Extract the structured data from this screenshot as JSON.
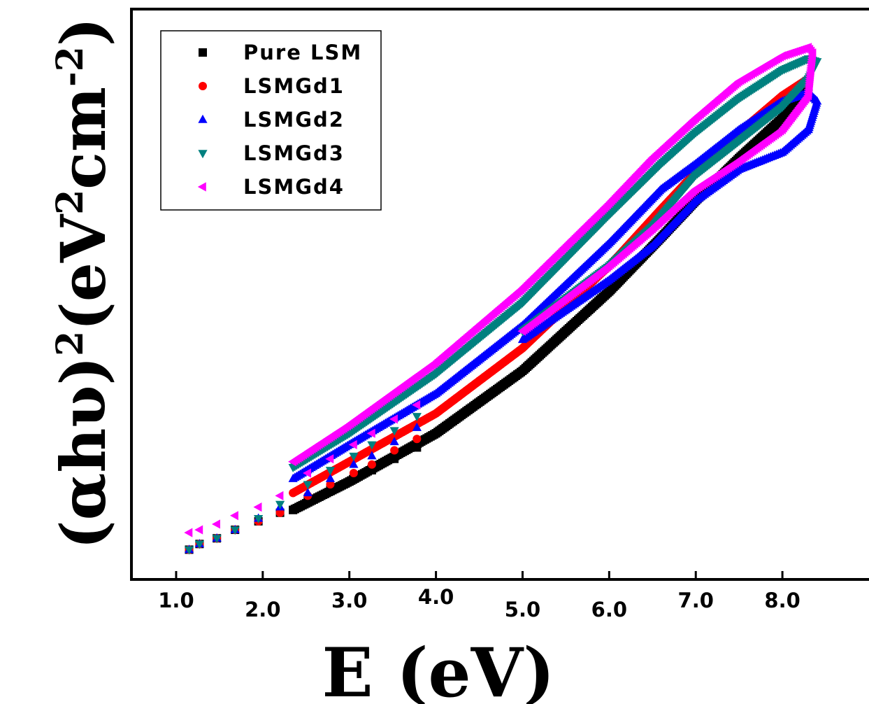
{
  "chart_data": {
    "type": "scatter",
    "xlabel": "E (eV)",
    "ylabel_parts": {
      "base": "(αhυ)",
      "exp1": "2",
      "mid1": "(eV",
      "exp2": "2",
      "mid2": "cm",
      "exp3": "-2",
      "close": ")"
    },
    "xlim": [
      0.5,
      9.0
    ],
    "x_ticks": [
      {
        "value": 1.0,
        "label": "1.0"
      },
      {
        "value": 2.0,
        "label": "2.0"
      },
      {
        "value": 3.0,
        "label": "3.0"
      },
      {
        "value": 4.0,
        "label": "4.0"
      },
      {
        "value": 5.0,
        "label": "5.0"
      },
      {
        "value": 6.0,
        "label": "6.0"
      },
      {
        "value": 7.0,
        "label": "7.0"
      },
      {
        "value": 8.0,
        "label": "8.0"
      }
    ],
    "y_tick_labels": "none",
    "grid": false,
    "legend_position": "top-left",
    "series": [
      {
        "name": "Pure LSM",
        "color": "#000000",
        "marker": "square",
        "sparse": [
          [
            1.15,
            0.1
          ],
          [
            1.27,
            0.12
          ],
          [
            1.47,
            0.14
          ],
          [
            1.68,
            0.17
          ],
          [
            1.95,
            0.2
          ],
          [
            2.2,
            0.23
          ],
          [
            2.52,
            0.27
          ],
          [
            2.78,
            0.31
          ],
          [
            3.05,
            0.35
          ],
          [
            3.26,
            0.38
          ],
          [
            3.52,
            0.42
          ],
          [
            3.78,
            0.46
          ]
        ],
        "upper": [
          [
            2.35,
            0.24
          ],
          [
            3.0,
            0.34
          ],
          [
            4.0,
            0.51
          ],
          [
            5.0,
            0.73
          ],
          [
            6.0,
            1.01
          ],
          [
            6.6,
            1.2
          ],
          [
            7.0,
            1.33
          ],
          [
            7.5,
            1.48
          ],
          [
            8.0,
            1.62
          ],
          [
            8.3,
            1.73
          ]
        ],
        "lower": [
          [
            2.35,
            0.24
          ],
          [
            3.0,
            0.34
          ],
          [
            4.0,
            0.51
          ],
          [
            5.0,
            0.73
          ],
          [
            6.0,
            1.01
          ],
          [
            6.6,
            1.2
          ],
          [
            7.0,
            1.33
          ],
          [
            7.5,
            1.48
          ],
          [
            8.0,
            1.62
          ],
          [
            8.3,
            1.73
          ]
        ]
      },
      {
        "name": "LSMGd1",
        "color": "#ff0000",
        "marker": "circle",
        "sparse": [
          [
            1.15,
            0.1
          ],
          [
            1.27,
            0.12
          ],
          [
            1.47,
            0.14
          ],
          [
            1.68,
            0.17
          ],
          [
            1.95,
            0.2
          ],
          [
            2.2,
            0.23
          ],
          [
            2.52,
            0.29
          ],
          [
            2.78,
            0.33
          ],
          [
            3.05,
            0.37
          ],
          [
            3.26,
            0.4
          ],
          [
            3.52,
            0.45
          ],
          [
            3.78,
            0.49
          ]
        ],
        "upper": [
          [
            2.35,
            0.3
          ],
          [
            3.0,
            0.41
          ],
          [
            4.0,
            0.58
          ],
          [
            5.0,
            0.81
          ],
          [
            6.0,
            1.1
          ],
          [
            6.6,
            1.3
          ],
          [
            7.0,
            1.43
          ],
          [
            7.5,
            1.57
          ],
          [
            8.0,
            1.7
          ],
          [
            8.3,
            1.76
          ]
        ],
        "lower": [
          [
            2.35,
            0.3
          ],
          [
            3.0,
            0.41
          ],
          [
            4.0,
            0.58
          ],
          [
            5.0,
            0.81
          ],
          [
            6.0,
            1.1
          ],
          [
            6.6,
            1.3
          ],
          [
            7.0,
            1.43
          ],
          [
            7.5,
            1.57
          ],
          [
            8.0,
            1.7
          ],
          [
            8.3,
            1.76
          ]
        ]
      },
      {
        "name": "LSMGd2",
        "color": "#0000ff",
        "marker": "triangle-up",
        "sparse": [
          [
            1.15,
            0.1
          ],
          [
            1.27,
            0.12
          ],
          [
            1.47,
            0.14
          ],
          [
            1.68,
            0.17
          ],
          [
            1.95,
            0.21
          ],
          [
            2.2,
            0.25
          ],
          [
            2.52,
            0.3
          ],
          [
            2.78,
            0.35
          ],
          [
            3.05,
            0.4
          ],
          [
            3.26,
            0.43
          ],
          [
            3.52,
            0.48
          ],
          [
            3.78,
            0.53
          ]
        ],
        "upper": [
          [
            2.35,
            0.35
          ],
          [
            3.0,
            0.47
          ],
          [
            4.0,
            0.65
          ],
          [
            5.0,
            0.89
          ],
          [
            6.0,
            1.18
          ],
          [
            6.6,
            1.37
          ],
          [
            7.0,
            1.46
          ],
          [
            7.5,
            1.58
          ],
          [
            8.0,
            1.68
          ],
          [
            8.3,
            1.71
          ],
          [
            8.4,
            1.68
          ]
        ],
        "lower": [
          [
            8.4,
            1.68
          ],
          [
            8.3,
            1.58
          ],
          [
            8.0,
            1.5
          ],
          [
            7.5,
            1.44
          ],
          [
            7.0,
            1.33
          ],
          [
            6.5,
            1.17
          ],
          [
            6.0,
            1.05
          ],
          [
            5.0,
            0.84
          ]
        ]
      },
      {
        "name": "LSMGd3",
        "color": "#00807f",
        "marker": "triangle-down",
        "sparse": [
          [
            1.15,
            0.1
          ],
          [
            1.27,
            0.12
          ],
          [
            1.47,
            0.14
          ],
          [
            1.68,
            0.17
          ],
          [
            1.95,
            0.21
          ],
          [
            2.2,
            0.26
          ],
          [
            2.52,
            0.33
          ],
          [
            2.78,
            0.38
          ],
          [
            3.05,
            0.43
          ],
          [
            3.26,
            0.47
          ],
          [
            3.52,
            0.52
          ],
          [
            3.78,
            0.57
          ]
        ],
        "upper": [
          [
            2.35,
            0.39
          ],
          [
            3.0,
            0.51
          ],
          [
            4.0,
            0.72
          ],
          [
            5.0,
            0.97
          ],
          [
            6.0,
            1.28
          ],
          [
            6.6,
            1.46
          ],
          [
            7.0,
            1.57
          ],
          [
            7.5,
            1.69
          ],
          [
            8.0,
            1.79
          ],
          [
            8.3,
            1.83
          ],
          [
            8.4,
            1.82
          ]
        ],
        "lower": [
          [
            8.4,
            1.82
          ],
          [
            8.3,
            1.76
          ],
          [
            8.0,
            1.66
          ],
          [
            7.5,
            1.54
          ],
          [
            7.0,
            1.42
          ],
          [
            6.5,
            1.24
          ],
          [
            6.0,
            1.1
          ],
          [
            5.0,
            0.87
          ]
        ]
      },
      {
        "name": "LSMGd4",
        "color": "#ff00ff",
        "marker": "triangle-left",
        "sparse": [
          [
            1.15,
            0.16
          ],
          [
            1.27,
            0.17
          ],
          [
            1.47,
            0.19
          ],
          [
            1.68,
            0.22
          ],
          [
            1.95,
            0.25
          ],
          [
            2.2,
            0.29
          ],
          [
            2.52,
            0.37
          ],
          [
            2.78,
            0.42
          ],
          [
            3.05,
            0.47
          ],
          [
            3.26,
            0.51
          ],
          [
            3.52,
            0.56
          ],
          [
            3.78,
            0.61
          ]
        ],
        "upper": [
          [
            2.35,
            0.41
          ],
          [
            3.0,
            0.54
          ],
          [
            4.0,
            0.76
          ],
          [
            5.0,
            1.02
          ],
          [
            6.0,
            1.32
          ],
          [
            6.5,
            1.48
          ],
          [
            7.0,
            1.62
          ],
          [
            7.5,
            1.75
          ],
          [
            8.0,
            1.84
          ],
          [
            8.3,
            1.87
          ],
          [
            8.35,
            1.85
          ]
        ],
        "lower": [
          [
            8.35,
            1.85
          ],
          [
            8.3,
            1.7
          ],
          [
            8.0,
            1.58
          ],
          [
            7.5,
            1.47
          ],
          [
            7.0,
            1.37
          ],
          [
            6.5,
            1.23
          ],
          [
            6.0,
            1.1
          ],
          [
            5.0,
            0.87
          ]
        ]
      }
    ]
  }
}
